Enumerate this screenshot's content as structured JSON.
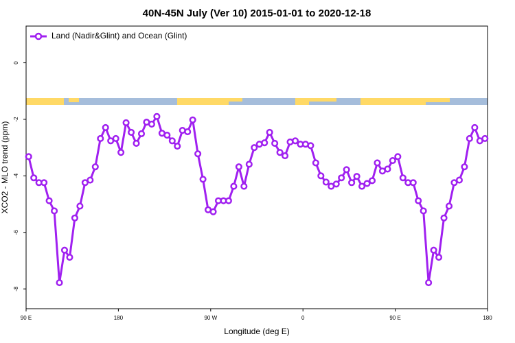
{
  "chart_data": {
    "type": "line",
    "title": "40N-45N July (Ver 10)   2015-01-01 to 2020-12-18",
    "x_label": "Longitude (deg E)",
    "y_label": "XCO2 - MLO trend (ppm)",
    "x": [
      92.5,
      97.5,
      102.5,
      107.5,
      112.5,
      117.5,
      122.5,
      127.5,
      132.5,
      137.5,
      142.5,
      147.5,
      152.5,
      157.5,
      162.5,
      167.5,
      172.5,
      177.5,
      182.5,
      187.5,
      192.5,
      197.5,
      202.5,
      207.5,
      212.5,
      217.5,
      222.5,
      227.5,
      232.5,
      237.5,
      242.5,
      247.5,
      252.5,
      257.5,
      262.5,
      267.5,
      272.5,
      277.5,
      282.5,
      287.5,
      292.5,
      297.5,
      302.5,
      307.5,
      312.5,
      317.5,
      322.5,
      327.5,
      332.5,
      337.5,
      342.5,
      347.5,
      352.5,
      357.5,
      362.5,
      367.5,
      372.5,
      377.5,
      382.5,
      387.5,
      392.5,
      397.5,
      402.5,
      407.5,
      412.5,
      417.5,
      422.5,
      427.5,
      432.5,
      437.5,
      442.5,
      447.5,
      452.5,
      457.5,
      462.5,
      467.5,
      472.5,
      477.5,
      482.5,
      487.5,
      492.5,
      497.5,
      502.5,
      507.5,
      512.5,
      517.5,
      522.5,
      527.5,
      532.5,
      537.5
    ],
    "series": [
      {
        "name": "Land (Nadir&Glint) and Ocean (Glint)",
        "color": "#a020f0",
        "values": [
          -3.32,
          -4.07,
          -4.24,
          -4.24,
          -4.88,
          -5.24,
          -7.78,
          -6.63,
          -6.88,
          -5.49,
          -5.07,
          -4.24,
          -4.15,
          -3.68,
          -2.68,
          -2.29,
          -2.76,
          -2.68,
          -3.17,
          -2.12,
          -2.46,
          -2.85,
          -2.51,
          -2.1,
          -2.17,
          -1.9,
          -2.49,
          -2.56,
          -2.76,
          -2.95,
          -2.39,
          -2.44,
          -2.02,
          -3.22,
          -4.12,
          -5.2,
          -5.27,
          -4.88,
          -4.88,
          -4.88,
          -4.37,
          -3.68,
          -4.37,
          -3.59,
          -3.0,
          -2.88,
          -2.83,
          -2.46,
          -2.85,
          -3.17,
          -3.29,
          -2.8,
          -2.76,
          -2.88,
          -2.88,
          -2.93,
          -3.54,
          -4.0,
          -4.22,
          -4.37,
          -4.29,
          -4.07,
          -3.78,
          -4.24,
          -4.02,
          -4.37,
          -4.27,
          -4.17,
          -3.54,
          -3.83,
          -3.76,
          -3.46,
          -3.32,
          -4.07,
          -4.24,
          -4.24,
          -4.88,
          -5.24,
          -7.78,
          -6.63,
          -6.88,
          -5.49,
          -5.07,
          -4.24,
          -4.15,
          -3.68,
          -2.68,
          -2.29,
          -2.76,
          -2.68
        ]
      }
    ],
    "xlim": [
      90,
      540
    ],
    "xticks": [
      {
        "value": 90,
        "label": "90 E"
      },
      180,
      {
        "value": 270,
        "label": "90 W"
      },
      {
        "value": 360,
        "label": "0"
      },
      {
        "value": 450,
        "label": "90 E"
      },
      {
        "value": 540,
        "label": "180"
      }
    ],
    "ylim": [
      -8.7,
      1.3
    ],
    "yticks": [
      -8,
      -6,
      -4,
      -2,
      0
    ],
    "legend": "top-left"
  }
}
